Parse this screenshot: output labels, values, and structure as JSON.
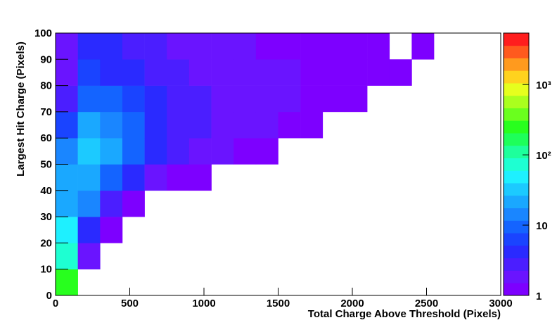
{
  "chart_data": {
    "type": "heatmap",
    "xlabel": "Total Charge Above Threshold (Pixels)",
    "ylabel": "Largest Hit Charge (Pixels)",
    "xlim": [
      0,
      3000
    ],
    "ylim": [
      0,
      100
    ],
    "xticks": [
      0,
      500,
      1000,
      1500,
      2000,
      2500,
      3000
    ],
    "yticks": [
      0,
      10,
      20,
      30,
      40,
      50,
      60,
      70,
      80,
      90,
      100
    ],
    "zlim": [
      1,
      5400
    ],
    "zticks": [
      1,
      10,
      {
        "value": 100,
        "label": "10²"
      },
      {
        "value": 1000,
        "label": "10³"
      }
    ],
    "log_z": true,
    "palette": [
      "#7d00ff",
      "#6a14ff",
      "#4b1eff",
      "#2a2aff",
      "#1a44ff",
      "#1464ff",
      "#1a86ff",
      "#1aa8ff",
      "#1ccaff",
      "#1ef0ff",
      "#1effd2",
      "#1eff9c",
      "#1eff5a",
      "#28ff1e",
      "#6aff1e",
      "#aaff1e",
      "#e6ff1e",
      "#ffd21e",
      "#ff9a1e",
      "#ff5a1e",
      "#ff1e1e"
    ],
    "xbins": [
      0,
      150,
      300,
      450,
      600,
      750,
      900,
      1050,
      1200,
      1350,
      1500,
      1650,
      1800,
      1950,
      2100,
      2250,
      2400,
      2550,
      2700,
      2850,
      3000
    ],
    "ybins": [
      0,
      10,
      20,
      30,
      40,
      50,
      60,
      70,
      80,
      90,
      100
    ],
    "z": [
      [
        300,
        null,
        null,
        null,
        null,
        null,
        null,
        null,
        null,
        null,
        null,
        null,
        null,
        null,
        null,
        null,
        null,
        null,
        null,
        null
      ],
      [
        60,
        2,
        null,
        null,
        null,
        null,
        null,
        null,
        null,
        null,
        null,
        null,
        null,
        null,
        null,
        null,
        null,
        null,
        null,
        null
      ],
      [
        40,
        4,
        1,
        null,
        null,
        null,
        null,
        null,
        null,
        null,
        null,
        null,
        null,
        null,
        null,
        null,
        null,
        null,
        null,
        null
      ],
      [
        25,
        12,
        3,
        1,
        null,
        null,
        null,
        null,
        null,
        null,
        null,
        null,
        null,
        null,
        null,
        null,
        null,
        null,
        null,
        null
      ],
      [
        20,
        25,
        10,
        4,
        2,
        1,
        1,
        null,
        null,
        null,
        null,
        null,
        null,
        null,
        null,
        null,
        null,
        null,
        null,
        null
      ],
      [
        12,
        30,
        18,
        8,
        4,
        3,
        2,
        2,
        1,
        1,
        null,
        null,
        null,
        null,
        null,
        null,
        null,
        null,
        null,
        null
      ],
      [
        6,
        20,
        15,
        8,
        5,
        3,
        3,
        2,
        2,
        2,
        1,
        1,
        null,
        null,
        null,
        null,
        null,
        null,
        null,
        null
      ],
      [
        3,
        10,
        8,
        6,
        4,
        3,
        3,
        2,
        2,
        2,
        2,
        1,
        1,
        1,
        null,
        null,
        null,
        null,
        null,
        null
      ],
      [
        2,
        6,
        5,
        4,
        3,
        3,
        2,
        2,
        2,
        2,
        2,
        1,
        1,
        1,
        1,
        1,
        null,
        null,
        null,
        null
      ],
      [
        2,
        5,
        4,
        3,
        3,
        2,
        2,
        2,
        2,
        1,
        1,
        1,
        1,
        1,
        1,
        null,
        1,
        null,
        null,
        null
      ]
    ]
  }
}
